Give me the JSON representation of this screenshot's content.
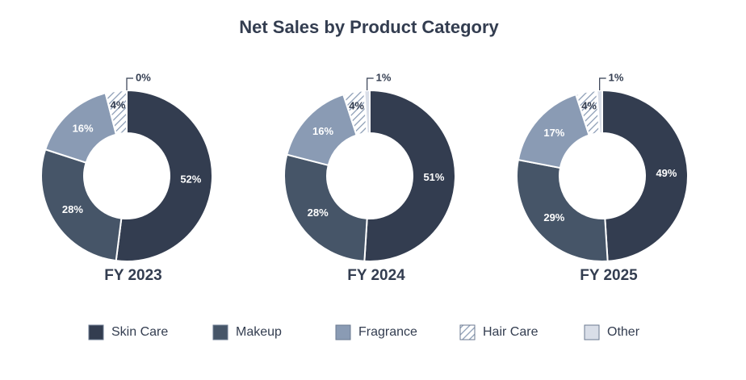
{
  "title": "Net Sales by Product Category",
  "chart_data": [
    {
      "type": "donut",
      "title": "FY 2023",
      "categories": [
        "Skin Care",
        "Makeup",
        "Fragrance",
        "Hair Care",
        "Other"
      ],
      "values": [
        52,
        28,
        16,
        4,
        0
      ],
      "value_labels": [
        "52%",
        "28%",
        "16%",
        "4%",
        "0%"
      ],
      "colors": [
        "#333d50",
        "#465568",
        "#8a9bb4",
        "#8a9bb4",
        "#d9dee8"
      ],
      "patterns": [
        null,
        null,
        null,
        "hatch",
        null
      ]
    },
    {
      "type": "donut",
      "title": "FY 2024",
      "categories": [
        "Skin Care",
        "Makeup",
        "Fragrance",
        "Hair Care",
        "Other"
      ],
      "values": [
        51,
        28,
        16,
        4,
        1
      ],
      "value_labels": [
        "51%",
        "28%",
        "16%",
        "4%",
        "1%"
      ],
      "colors": [
        "#333d50",
        "#465568",
        "#8a9bb4",
        "#8a9bb4",
        "#d9dee8"
      ],
      "patterns": [
        null,
        null,
        null,
        "hatch",
        null
      ]
    },
    {
      "type": "donut",
      "title": "FY 2025",
      "categories": [
        "Skin Care",
        "Makeup",
        "Fragrance",
        "Hair Care",
        "Other"
      ],
      "values": [
        49,
        29,
        17,
        4,
        1
      ],
      "value_labels": [
        "49%",
        "29%",
        "17%",
        "4%",
        "1%"
      ],
      "colors": [
        "#333d50",
        "#465568",
        "#8a9bb4",
        "#8a9bb4",
        "#d9dee8"
      ],
      "patterns": [
        null,
        null,
        null,
        "hatch",
        null
      ]
    }
  ]
}
